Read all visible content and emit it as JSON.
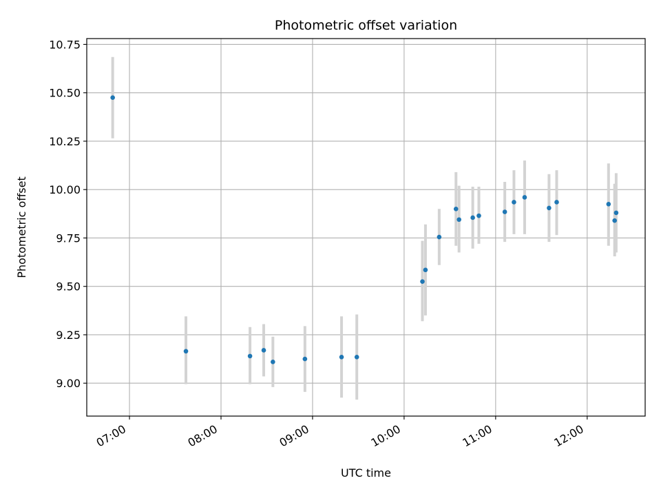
{
  "chart_data": {
    "type": "scatter",
    "title": "Photometric offset variation",
    "xlabel": "UTC time",
    "ylabel": "Photometric offset",
    "x_axis_type": "time",
    "xlim": [
      "06:32",
      "12:38"
    ],
    "ylim": [
      8.83,
      10.78
    ],
    "xticks": [
      "07:00",
      "08:00",
      "09:00",
      "10:00",
      "11:00",
      "12:00"
    ],
    "yticks": [
      9.0,
      9.25,
      9.5,
      9.75,
      10.0,
      10.25,
      10.5,
      10.75
    ],
    "ytick_labels": [
      "9.00",
      "9.25",
      "9.50",
      "9.75",
      "10.00",
      "10.25",
      "10.50",
      "10.75"
    ],
    "grid": true,
    "legend": "none",
    "colors": {
      "point": "#1f77b4",
      "errorbar": "#d3d3d3",
      "grid": "#b0b0b0"
    },
    "points": [
      {
        "x": "06:49",
        "y": 10.475,
        "err_low": 10.265,
        "err_high": 10.685
      },
      {
        "x": "07:37",
        "y": 9.165,
        "err_low": 8.995,
        "err_high": 9.345
      },
      {
        "x": "08:19",
        "y": 9.14,
        "err_low": 8.995,
        "err_high": 9.29
      },
      {
        "x": "08:28",
        "y": 9.17,
        "err_low": 9.035,
        "err_high": 9.305
      },
      {
        "x": "08:34",
        "y": 9.11,
        "err_low": 8.98,
        "err_high": 9.24
      },
      {
        "x": "08:55",
        "y": 9.125,
        "err_low": 8.955,
        "err_high": 9.295
      },
      {
        "x": "09:19",
        "y": 9.135,
        "err_low": 8.925,
        "err_high": 9.345
      },
      {
        "x": "09:29",
        "y": 9.135,
        "err_low": 8.915,
        "err_high": 9.355
      },
      {
        "x": "10:12",
        "y": 9.525,
        "err_low": 9.32,
        "err_high": 9.735
      },
      {
        "x": "10:14",
        "y": 9.585,
        "err_low": 9.35,
        "err_high": 9.82
      },
      {
        "x": "10:23",
        "y": 9.755,
        "err_low": 9.61,
        "err_high": 9.9
      },
      {
        "x": "10:34",
        "y": 9.9,
        "err_low": 9.71,
        "err_high": 10.09
      },
      {
        "x": "10:36",
        "y": 9.845,
        "err_low": 9.675,
        "err_high": 10.02
      },
      {
        "x": "10:45",
        "y": 9.855,
        "err_low": 9.695,
        "err_high": 10.015
      },
      {
        "x": "10:49",
        "y": 9.865,
        "err_low": 9.72,
        "err_high": 10.015
      },
      {
        "x": "11:06",
        "y": 9.885,
        "err_low": 9.73,
        "err_high": 10.04
      },
      {
        "x": "11:12",
        "y": 9.935,
        "err_low": 9.77,
        "err_high": 10.1
      },
      {
        "x": "11:19",
        "y": 9.96,
        "err_low": 9.77,
        "err_high": 10.15
      },
      {
        "x": "11:35",
        "y": 9.905,
        "err_low": 9.73,
        "err_high": 10.08
      },
      {
        "x": "11:40",
        "y": 9.935,
        "err_low": 9.765,
        "err_high": 10.1
      },
      {
        "x": "12:14",
        "y": 9.925,
        "err_low": 9.71,
        "err_high": 10.135
      },
      {
        "x": "12:18",
        "y": 9.84,
        "err_low": 9.655,
        "err_high": 10.03
      },
      {
        "x": "12:19",
        "y": 9.88,
        "err_low": 9.675,
        "err_high": 10.085
      }
    ]
  }
}
